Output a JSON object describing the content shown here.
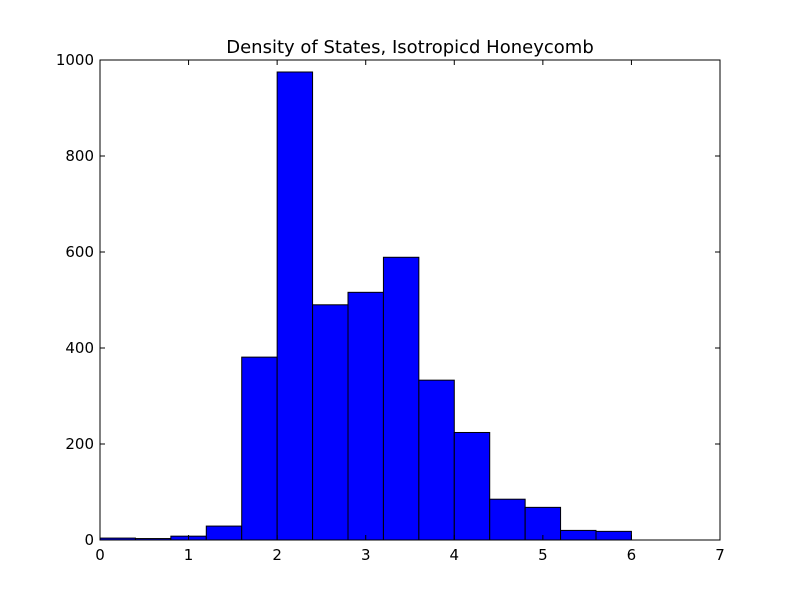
{
  "chart_data": {
    "type": "bar",
    "title": "Density of States, Isotropicd Honeycomb",
    "xlabel": "",
    "ylabel": "",
    "xlim": [
      0,
      7
    ],
    "ylim": [
      0,
      1000
    ],
    "x_ticks": [
      {
        "value": 0,
        "label": "0"
      },
      {
        "value": 1,
        "label": "1"
      },
      {
        "value": 2,
        "label": "2"
      },
      {
        "value": 3,
        "label": "3"
      },
      {
        "value": 4,
        "label": "4"
      },
      {
        "value": 5,
        "label": "5"
      },
      {
        "value": 6,
        "label": "6"
      },
      {
        "value": 7,
        "label": "7"
      }
    ],
    "y_ticks": [
      {
        "value": 0,
        "label": "0"
      },
      {
        "value": 200,
        "label": "200"
      },
      {
        "value": 400,
        "label": "400"
      },
      {
        "value": 600,
        "label": "600"
      },
      {
        "value": 800,
        "label": "800"
      },
      {
        "value": 1000,
        "label": "1000"
      }
    ],
    "bar_color": "#0000ff",
    "edge_color": "#000000",
    "grid": false,
    "bins": [
      {
        "x0": 0.0,
        "x1": 0.4,
        "value": 4
      },
      {
        "x0": 0.4,
        "x1": 0.8,
        "value": 3
      },
      {
        "x0": 0.8,
        "x1": 1.2,
        "value": 8
      },
      {
        "x0": 1.2,
        "x1": 1.6,
        "value": 29
      },
      {
        "x0": 1.6,
        "x1": 2.0,
        "value": 381
      },
      {
        "x0": 2.0,
        "x1": 2.4,
        "value": 975
      },
      {
        "x0": 2.4,
        "x1": 2.8,
        "value": 490
      },
      {
        "x0": 2.8,
        "x1": 3.2,
        "value": 516
      },
      {
        "x0": 3.2,
        "x1": 3.6,
        "value": 589
      },
      {
        "x0": 3.6,
        "x1": 4.0,
        "value": 333
      },
      {
        "x0": 4.0,
        "x1": 4.4,
        "value": 224
      },
      {
        "x0": 4.4,
        "x1": 4.8,
        "value": 85
      },
      {
        "x0": 4.8,
        "x1": 5.2,
        "value": 68
      },
      {
        "x0": 5.2,
        "x1": 5.6,
        "value": 20
      },
      {
        "x0": 5.6,
        "x1": 6.0,
        "value": 18
      }
    ]
  }
}
